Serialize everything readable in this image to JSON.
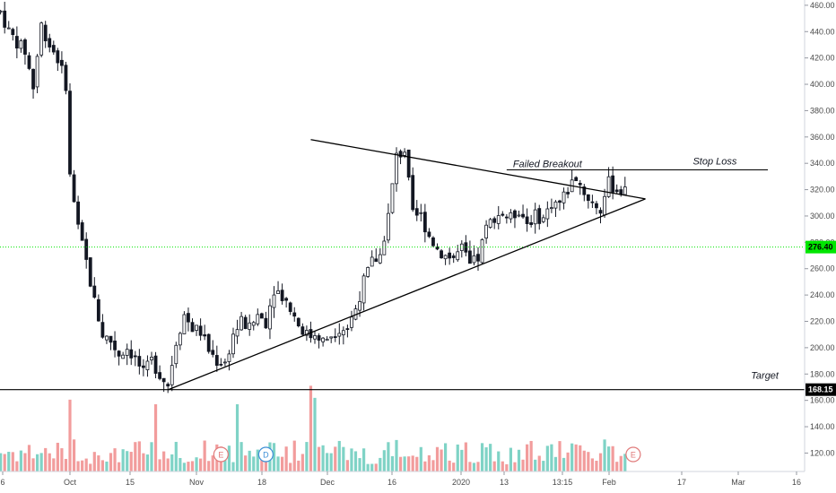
{
  "chart_data": {
    "type": "candlestick",
    "y_axis": {
      "ticks": [
        "460.00",
        "440.00",
        "420.00",
        "400.00",
        "380.00",
        "360.00",
        "340.00",
        "320.00",
        "300.00",
        "280.00",
        "260.00",
        "240.00",
        "220.00",
        "200.00",
        "180.00",
        "160.00",
        "140.00",
        "120.00"
      ],
      "range": [
        106,
        464
      ]
    },
    "x_axis": {
      "tick_labels": [
        "6",
        "Oct",
        "15",
        "Nov",
        "18",
        "Dec",
        "16",
        "2020",
        "13",
        "13:15",
        "Feb",
        "17",
        "Mar",
        "16"
      ]
    },
    "price_labels": [
      {
        "text": "276.40",
        "value": 276.4,
        "color": "#00e600"
      },
      {
        "text": "168.15",
        "value": 168.15,
        "color": "#000000"
      }
    ],
    "annotations": [
      {
        "text": "Failed Breakout"
      },
      {
        "text": "Stop Loss"
      },
      {
        "text": "Target"
      }
    ],
    "event_badges": [
      {
        "text": "E",
        "color": "#e07a7a"
      },
      {
        "text": "D",
        "color": "#3d8fd6"
      },
      {
        "text": "E",
        "color": "#e07a7a"
      }
    ],
    "trendlines": [
      {
        "name": "upper",
        "from": {
          "bar": 59,
          "price": 358
        },
        "to": {
          "bar": 141,
          "price": 313
        }
      },
      {
        "name": "lower",
        "from": {
          "bar": 24,
          "price": 168
        },
        "to": {
          "bar": 141,
          "price": 313
        }
      }
    ],
    "levels": [
      {
        "name": "stop-loss",
        "price": 335,
        "from_bar": 107,
        "to_bar": 171
      },
      {
        "name": "target",
        "price": 168.15
      }
    ],
    "colors": {
      "up_volume": "#7fd3c6",
      "down_volume": "#f29c9c",
      "candle": "#131722",
      "current_price_line": "#00e600"
    }
  },
  "ui": {
    "stop_loss_label": "Stop Loss",
    "failed_breakout_label": "Failed Breakout",
    "target_label": "Target"
  }
}
